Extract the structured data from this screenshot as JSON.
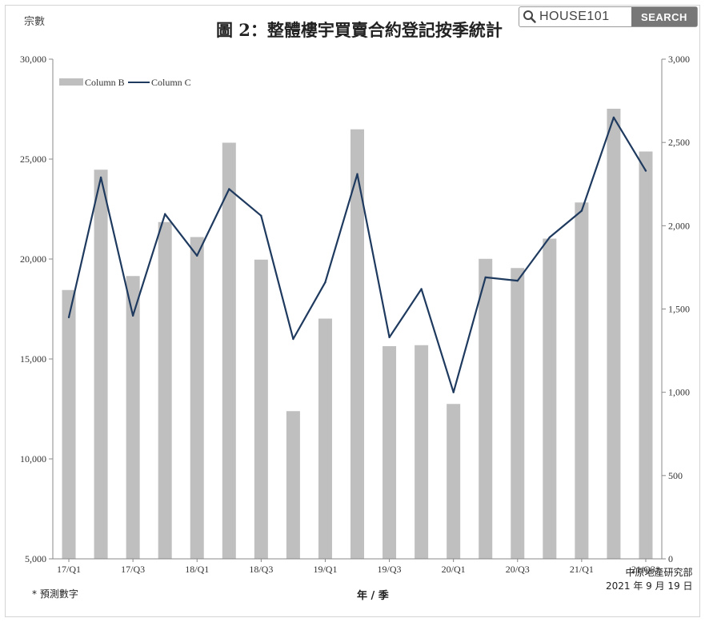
{
  "title": "圖 2：整體樓宇買賣合約登記按季統計",
  "unit_label": "宗數",
  "search": {
    "text": "HOUSE101",
    "button": "SEARCH"
  },
  "footnote": "* 預測數字",
  "source": {
    "line1": "中原地產研究部",
    "line2": "2021 年 9 月 19 日"
  },
  "chart_data": {
    "type": "bar",
    "categories": [
      "17/Q1",
      "17/Q2",
      "17/Q3",
      "17/Q4",
      "18/Q1",
      "18/Q2",
      "18/Q3",
      "18/Q4",
      "19/Q1",
      "19/Q2",
      "19/Q3",
      "19/Q4",
      "20/Q1",
      "20/Q2",
      "20/Q3",
      "20/Q4",
      "21/Q1",
      "21/Q2",
      "21/Q3*"
    ],
    "x_tick_labels": [
      "17/Q1",
      "",
      "17/Q3",
      "",
      "18/Q1",
      "",
      "18/Q3",
      "",
      "19/Q1",
      "",
      "19/Q3",
      "",
      "20/Q1",
      "",
      "20/Q3",
      "",
      "21/Q1",
      "",
      "21/Q3*"
    ],
    "series": [
      {
        "name": "Column B",
        "type": "bar",
        "axis": "left",
        "color": "#bfbfbf",
        "values": [
          18450,
          24470,
          19150,
          21850,
          21100,
          25820,
          19970,
          12390,
          17020,
          26490,
          15640,
          15690,
          12750,
          20010,
          19550,
          21020,
          22830,
          27520,
          25380
        ]
      },
      {
        "name": "Column C",
        "type": "line",
        "axis": "right",
        "color": "#1f3a5f",
        "values": [
          1450,
          2290,
          1460,
          2070,
          1820,
          2220,
          2060,
          1320,
          1660,
          2310,
          1330,
          1620,
          1000,
          1690,
          1670,
          1930,
          2090,
          2650,
          2330
        ]
      }
    ],
    "xlabel": "年 / 季",
    "ylabel": "宗數",
    "ylim": [
      5000,
      30000
    ],
    "y2lim": [
      0,
      3000
    ],
    "y_ticks": [
      "5,000",
      "10,000",
      "15,000",
      "20,000",
      "25,000",
      "30,000"
    ],
    "y2_ticks": [
      "0",
      "500",
      "1,000",
      "1,500",
      "2,000",
      "2,500",
      "3,000"
    ],
    "legend": "top-left",
    "grid": false
  }
}
